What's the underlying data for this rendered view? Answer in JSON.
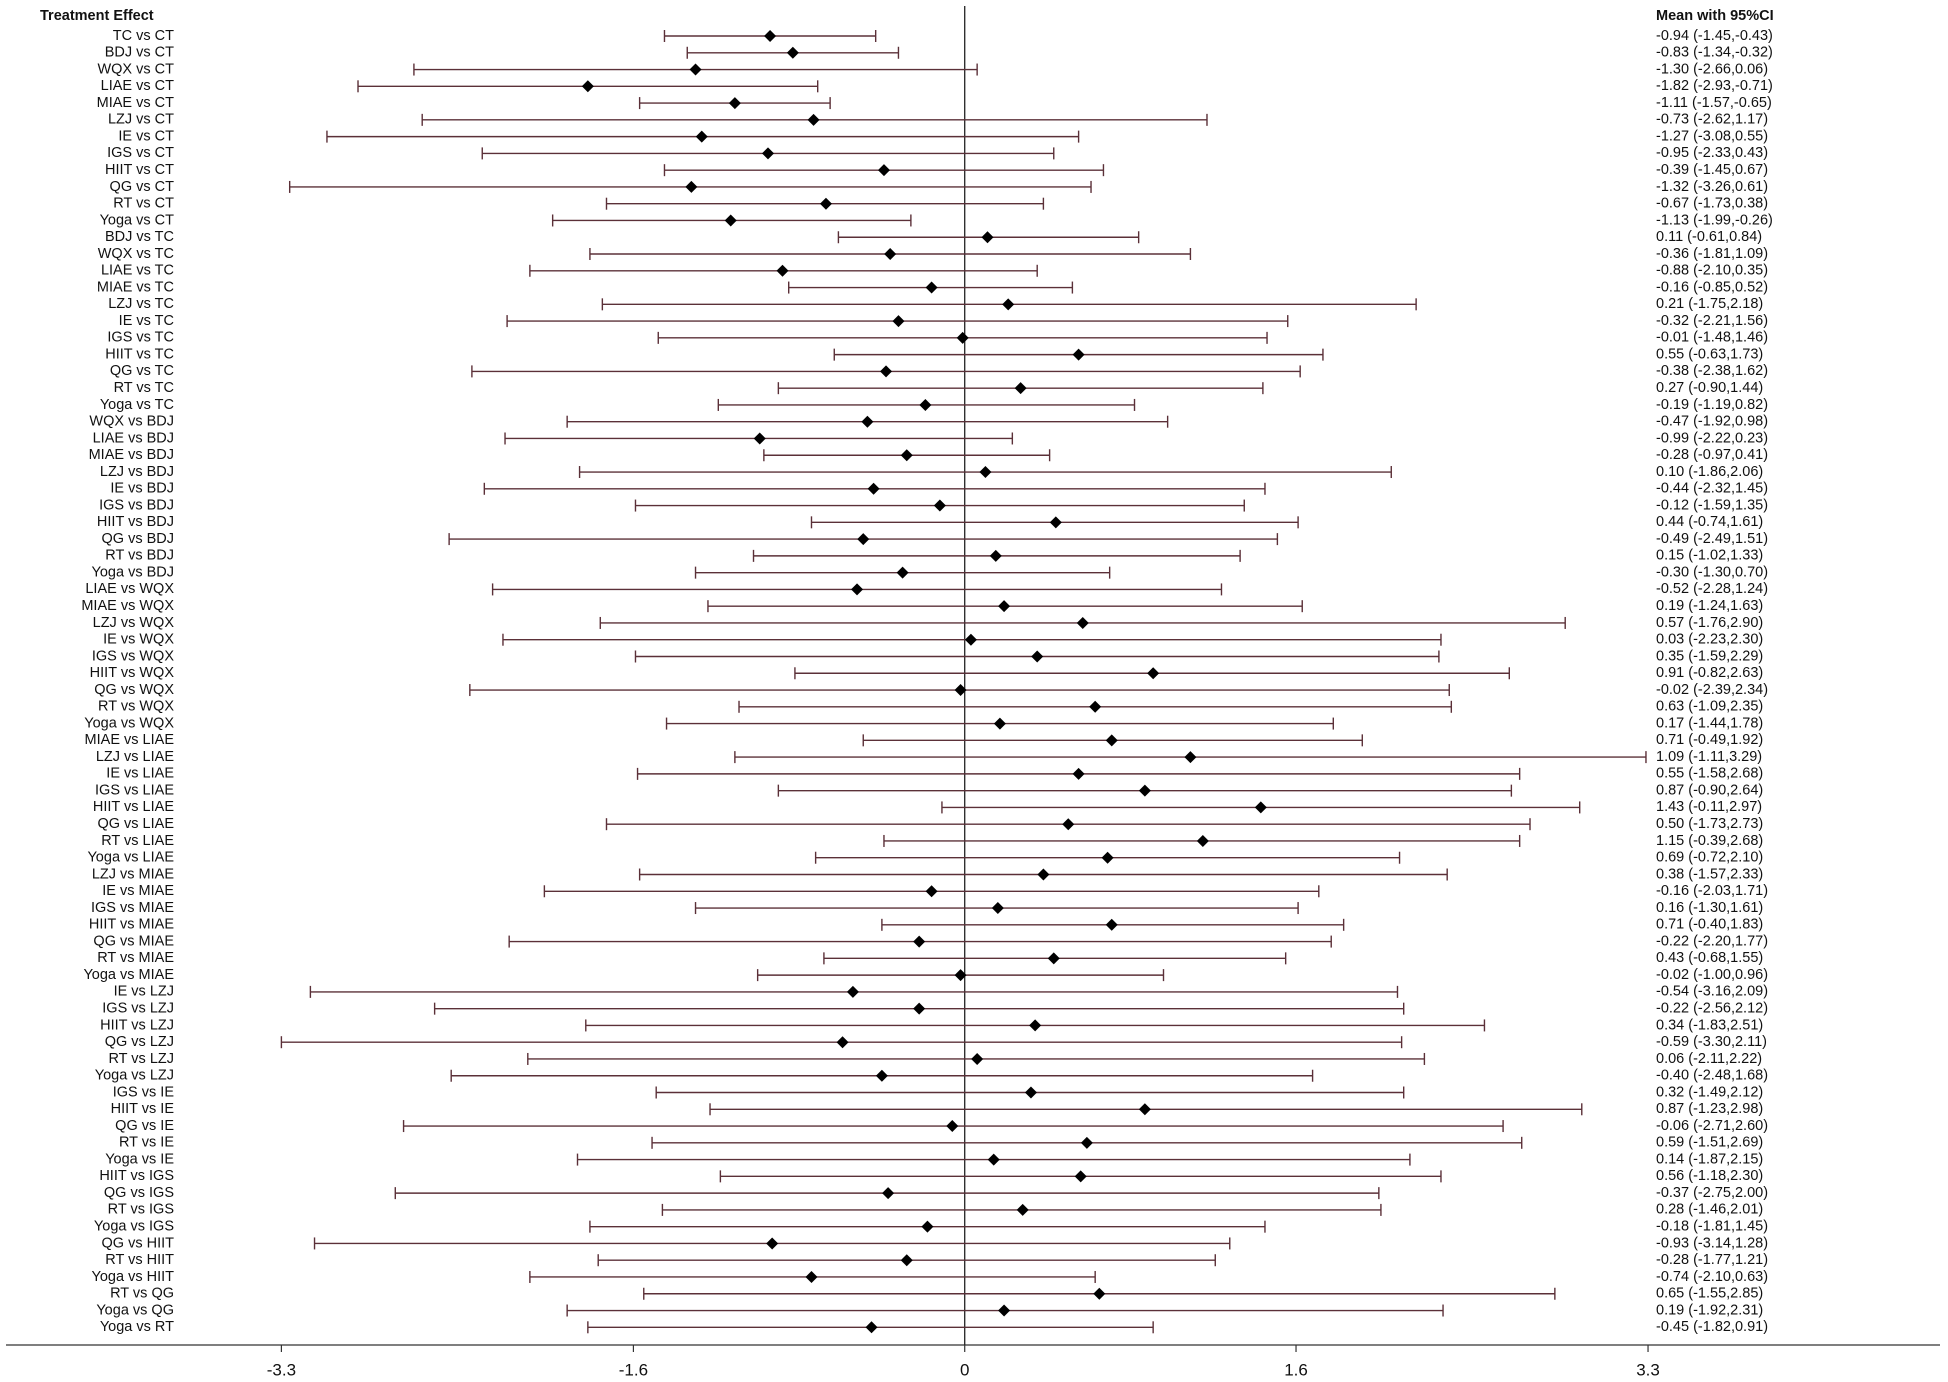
{
  "chart_data": {
    "type": "forest",
    "label_header": "Treatment Effect",
    "value_header": "Mean with 95%CI",
    "categories": [
      "TC vs CT",
      "BDJ vs CT",
      "WQX vs CT",
      "LIAE vs CT",
      "MIAE vs CT",
      "LZJ vs CT",
      "IE vs CT",
      "IGS vs CT",
      "HIIT vs CT",
      "QG vs CT",
      "RT vs CT",
      "Yoga vs CT",
      "BDJ vs TC",
      "WQX vs TC",
      "LIAE vs TC",
      "MIAE vs TC",
      "LZJ vs TC",
      "IE vs TC",
      "IGS vs TC",
      "HIIT vs TC",
      "QG vs TC",
      "RT vs TC",
      "Yoga vs TC",
      "WQX vs BDJ",
      "LIAE vs BDJ",
      "MIAE vs BDJ",
      "LZJ vs BDJ",
      "IE vs BDJ",
      "IGS vs BDJ",
      "HIIT vs BDJ",
      "QG vs BDJ",
      "RT vs BDJ",
      "Yoga vs BDJ",
      "LIAE vs WQX",
      "MIAE vs WQX",
      "LZJ vs WQX",
      "IE vs WQX",
      "IGS vs WQX",
      "HIIT vs WQX",
      "QG vs WQX",
      "RT vs WQX",
      "Yoga vs WQX",
      "MIAE vs LIAE",
      "LZJ vs LIAE",
      "IE vs LIAE",
      "IGS vs LIAE",
      "HIIT vs LIAE",
      "QG vs LIAE",
      "RT vs LIAE",
      "Yoga vs LIAE",
      "LZJ vs MIAE",
      "IE vs MIAE",
      "IGS vs MIAE",
      "HIIT vs MIAE",
      "QG vs MIAE",
      "RT vs MIAE",
      "Yoga vs MIAE",
      "IE vs LZJ",
      "IGS vs LZJ",
      "HIIT vs LZJ",
      "QG vs LZJ",
      "RT vs LZJ",
      "Yoga vs LZJ",
      "IGS vs IE",
      "HIIT vs IE",
      "QG vs IE",
      "RT vs IE",
      "Yoga vs IE",
      "HIIT vs IGS",
      "QG vs IGS",
      "RT vs IGS",
      "Yoga vs IGS",
      "QG vs HIIT",
      "RT vs HIIT",
      "Yoga vs HIIT",
      "RT vs QG",
      "Yoga vs QG",
      "Yoga vs RT"
    ],
    "values": [
      -0.94,
      -0.83,
      -1.3,
      -1.82,
      -1.11,
      -0.73,
      -1.27,
      -0.95,
      -0.39,
      -1.32,
      -0.67,
      -1.13,
      0.11,
      -0.36,
      -0.88,
      -0.16,
      0.21,
      -0.32,
      -0.01,
      0.55,
      -0.38,
      0.27,
      -0.19,
      -0.47,
      -0.99,
      -0.28,
      0.1,
      -0.44,
      -0.12,
      0.44,
      -0.49,
      0.15,
      -0.3,
      -0.52,
      0.19,
      0.57,
      0.03,
      0.35,
      0.91,
      -0.02,
      0.63,
      0.17,
      0.71,
      1.09,
      0.55,
      0.87,
      1.43,
      0.5,
      1.15,
      0.69,
      0.38,
      -0.16,
      0.16,
      0.71,
      -0.22,
      0.43,
      -0.02,
      -0.54,
      -0.22,
      0.34,
      -0.59,
      0.06,
      -0.4,
      0.32,
      0.87,
      -0.06,
      0.59,
      0.14,
      0.56,
      -0.37,
      0.28,
      -0.18,
      -0.93,
      -0.28,
      -0.74,
      0.65,
      0.19,
      -0.45
    ],
    "lower": [
      -1.45,
      -1.34,
      -2.66,
      -2.93,
      -1.57,
      -2.62,
      -3.08,
      -2.33,
      -1.45,
      -3.26,
      -1.73,
      -1.99,
      -0.61,
      -1.81,
      -2.1,
      -0.85,
      -1.75,
      -2.21,
      -1.48,
      -0.63,
      -2.38,
      -0.9,
      -1.19,
      -1.92,
      -2.22,
      -0.97,
      -1.86,
      -2.32,
      -1.59,
      -0.74,
      -2.49,
      -1.02,
      -1.3,
      -2.28,
      -1.24,
      -1.76,
      -2.23,
      -1.59,
      -0.82,
      -2.39,
      -1.09,
      -1.44,
      -0.49,
      -1.11,
      -1.58,
      -0.9,
      -0.11,
      -1.73,
      -0.39,
      -0.72,
      -1.57,
      -2.03,
      -1.3,
      -0.4,
      -2.2,
      -0.68,
      -1.0,
      -3.16,
      -2.56,
      -1.83,
      -3.3,
      -2.11,
      -2.48,
      -1.49,
      -1.23,
      -2.71,
      -1.51,
      -1.87,
      -1.18,
      -2.75,
      -1.46,
      -1.81,
      -3.14,
      -1.77,
      -2.1,
      -1.55,
      -1.92,
      -1.82
    ],
    "upper": [
      -0.43,
      -0.32,
      0.06,
      -0.71,
      -0.65,
      1.17,
      0.55,
      0.43,
      0.67,
      0.61,
      0.38,
      -0.26,
      0.84,
      1.09,
      0.35,
      0.52,
      2.18,
      1.56,
      1.46,
      1.73,
      1.62,
      1.44,
      0.82,
      0.98,
      0.23,
      0.41,
      2.06,
      1.45,
      1.35,
      1.61,
      1.51,
      1.33,
      0.7,
      1.24,
      1.63,
      2.9,
      2.3,
      2.29,
      2.63,
      2.34,
      2.35,
      1.78,
      1.92,
      3.29,
      2.68,
      2.64,
      2.97,
      2.73,
      2.68,
      2.1,
      2.33,
      1.71,
      1.61,
      1.83,
      1.77,
      1.55,
      0.96,
      2.09,
      2.12,
      2.51,
      2.11,
      2.22,
      1.68,
      2.12,
      2.98,
      2.6,
      2.69,
      2.15,
      2.3,
      2.0,
      2.01,
      1.45,
      1.28,
      1.21,
      0.63,
      2.85,
      2.31,
      0.91
    ],
    "value_labels": [
      "-0.94 (-1.45,-0.43)",
      "-0.83 (-1.34,-0.32)",
      "-1.30 (-2.66,0.06)",
      "-1.82 (-2.93,-0.71)",
      "-1.11 (-1.57,-0.65)",
      "-0.73 (-2.62,1.17)",
      "-1.27 (-3.08,0.55)",
      "-0.95 (-2.33,0.43)",
      "-0.39 (-1.45,0.67)",
      "-1.32 (-3.26,0.61)",
      "-0.67 (-1.73,0.38)",
      "-1.13 (-1.99,-0.26)",
      "0.11 (-0.61,0.84)",
      "-0.36 (-1.81,1.09)",
      "-0.88 (-2.10,0.35)",
      "-0.16 (-0.85,0.52)",
      "0.21 (-1.75,2.18)",
      "-0.32 (-2.21,1.56)",
      "-0.01 (-1.48,1.46)",
      "0.55 (-0.63,1.73)",
      "-0.38 (-2.38,1.62)",
      "0.27 (-0.90,1.44)",
      "-0.19 (-1.19,0.82)",
      "-0.47 (-1.92,0.98)",
      "-0.99 (-2.22,0.23)",
      "-0.28 (-0.97,0.41)",
      "0.10 (-1.86,2.06)",
      "-0.44 (-2.32,1.45)",
      "-0.12 (-1.59,1.35)",
      "0.44 (-0.74,1.61)",
      "-0.49 (-2.49,1.51)",
      "0.15 (-1.02,1.33)",
      "-0.30 (-1.30,0.70)",
      "-0.52 (-2.28,1.24)",
      "0.19 (-1.24,1.63)",
      "0.57 (-1.76,2.90)",
      "0.03 (-2.23,2.30)",
      "0.35 (-1.59,2.29)",
      "0.91 (-0.82,2.63)",
      "-0.02 (-2.39,2.34)",
      "0.63 (-1.09,2.35)",
      "0.17 (-1.44,1.78)",
      "0.71 (-0.49,1.92)",
      "1.09 (-1.11,3.29)",
      "0.55 (-1.58,2.68)",
      "0.87 (-0.90,2.64)",
      "1.43 (-0.11,2.97)",
      "0.50 (-1.73,2.73)",
      "1.15 (-0.39,2.68)",
      "0.69 (-0.72,2.10)",
      "0.38 (-1.57,2.33)",
      "-0.16 (-2.03,1.71)",
      "0.16 (-1.30,1.61)",
      "0.71 (-0.40,1.83)",
      "-0.22 (-2.20,1.77)",
      "0.43 (-0.68,1.55)",
      "-0.02 (-1.00,0.96)",
      "-0.54 (-3.16,2.09)",
      "-0.22 (-2.56,2.12)",
      "0.34 (-1.83,2.51)",
      "-0.59 (-3.30,2.11)",
      "0.06 (-2.11,2.22)",
      "-0.40 (-2.48,1.68)",
      "0.32 (-1.49,2.12)",
      "0.87 (-1.23,2.98)",
      "-0.06 (-2.71,2.60)",
      "0.59 (-1.51,2.69)",
      "0.14 (-1.87,2.15)",
      "0.56 (-1.18,2.30)",
      "-0.37 (-2.75,2.00)",
      "0.28 (-1.46,2.01)",
      "-0.18 (-1.81,1.45)",
      "-0.93 (-3.14,1.28)",
      "-0.28 (-1.77,1.21)",
      "-0.74 (-2.10,0.63)",
      "0.65 (-1.55,2.85)",
      "0.19 (-1.92,2.31)",
      "-0.45 (-1.82,0.91)"
    ],
    "ci_color": "#5b3038",
    "marker_color": "#000000",
    "xlim": [
      -4.63,
      4.71
    ],
    "xticks": [
      -3.3,
      -1.6,
      0,
      1.6,
      3.3
    ]
  }
}
